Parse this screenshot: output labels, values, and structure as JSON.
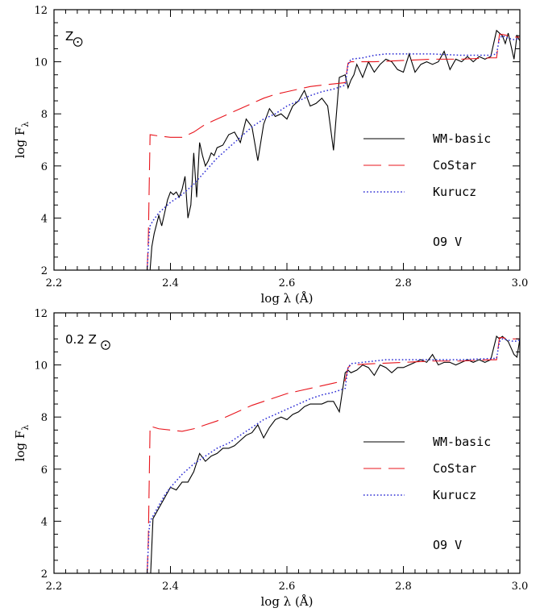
{
  "chart_data": [
    {
      "type": "line",
      "xlabel": "log  λ (Å)",
      "ylabel": "log F",
      "ylabel_sub": "λ",
      "xlim": [
        2.2,
        3.0
      ],
      "ylim": [
        2,
        12
      ],
      "xticks": [
        "2.2",
        "2.4",
        "2.6",
        "2.8",
        "3.0"
      ],
      "yticks": [
        "2",
        "4",
        "6",
        "8",
        "10",
        "12"
      ],
      "grid": false,
      "legend_position": "right",
      "metallicity_prefix": "",
      "metallicity_label": "Z",
      "spectral_type": "O9 V",
      "series": [
        {
          "name": "WM-basic",
          "color": "#000000",
          "style": "solid",
          "x": [
            2.365,
            2.368,
            2.372,
            2.38,
            2.385,
            2.39,
            2.395,
            2.4,
            2.405,
            2.41,
            2.415,
            2.42,
            2.425,
            2.43,
            2.435,
            2.44,
            2.445,
            2.45,
            2.455,
            2.46,
            2.465,
            2.47,
            2.475,
            2.48,
            2.49,
            2.5,
            2.51,
            2.52,
            2.53,
            2.54,
            2.55,
            2.56,
            2.57,
            2.58,
            2.59,
            2.6,
            2.61,
            2.62,
            2.63,
            2.64,
            2.65,
            2.66,
            2.67,
            2.68,
            2.69,
            2.7,
            2.705,
            2.71,
            2.715,
            2.72,
            2.73,
            2.74,
            2.75,
            2.76,
            2.77,
            2.78,
            2.79,
            2.8,
            2.81,
            2.82,
            2.83,
            2.84,
            2.85,
            2.86,
            2.87,
            2.88,
            2.89,
            2.9,
            2.91,
            2.92,
            2.93,
            2.94,
            2.95,
            2.96,
            2.965,
            2.97,
            2.975,
            2.98,
            2.985,
            2.99,
            2.995,
            3.0
          ],
          "values": [
            2.0,
            2.9,
            3.4,
            4.1,
            3.7,
            4.2,
            4.7,
            5.0,
            4.9,
            5.0,
            4.8,
            5.1,
            5.6,
            4.0,
            4.5,
            6.5,
            4.8,
            6.9,
            6.4,
            6.0,
            6.2,
            6.5,
            6.4,
            6.7,
            6.8,
            7.2,
            7.3,
            6.9,
            7.8,
            7.5,
            6.2,
            7.6,
            8.2,
            7.9,
            8.0,
            7.8,
            8.3,
            8.5,
            8.9,
            8.3,
            8.4,
            8.6,
            8.3,
            6.6,
            9.4,
            9.5,
            9.0,
            9.3,
            9.5,
            9.9,
            9.4,
            10.0,
            9.6,
            9.9,
            10.1,
            10.0,
            9.7,
            9.6,
            10.3,
            9.6,
            9.9,
            10.0,
            9.9,
            10.0,
            10.4,
            9.7,
            10.1,
            10.0,
            10.2,
            10.0,
            10.2,
            10.1,
            10.2,
            11.2,
            11.1,
            11.0,
            10.7,
            11.1,
            10.6,
            10.1,
            11.0,
            10.8
          ]
        },
        {
          "name": "CoStar",
          "color": "#e8141c",
          "style": "dashed",
          "x": [
            2.36,
            2.362,
            2.365,
            2.38,
            2.4,
            2.42,
            2.44,
            2.46,
            2.48,
            2.5,
            2.52,
            2.54,
            2.56,
            2.58,
            2.6,
            2.62,
            2.64,
            2.66,
            2.68,
            2.7,
            2.705,
            2.71,
            2.75,
            2.8,
            2.85,
            2.9,
            2.95,
            2.96,
            2.965,
            2.97,
            2.98,
            2.99,
            3.0
          ],
          "values": [
            2.0,
            3.2,
            7.2,
            7.15,
            7.1,
            7.1,
            7.3,
            7.6,
            7.8,
            8.0,
            8.2,
            8.4,
            8.6,
            8.75,
            8.85,
            8.95,
            9.05,
            9.1,
            9.15,
            9.2,
            9.95,
            10.0,
            10.0,
            10.05,
            10.1,
            10.1,
            10.15,
            10.15,
            11.05,
            11.05,
            11.0,
            10.95,
            10.95
          ]
        },
        {
          "name": "Kurucz",
          "color": "#2a2ad4",
          "style": "dotted",
          "x": [
            2.36,
            2.363,
            2.365,
            2.37,
            2.38,
            2.39,
            2.4,
            2.42,
            2.44,
            2.46,
            2.48,
            2.5,
            2.52,
            2.54,
            2.56,
            2.58,
            2.6,
            2.62,
            2.64,
            2.66,
            2.68,
            2.7,
            2.705,
            2.71,
            2.73,
            2.75,
            2.77,
            2.8,
            2.85,
            2.9,
            2.95,
            2.96,
            2.965,
            2.97,
            2.98,
            2.99,
            3.0
          ],
          "values": [
            2.0,
            3.3,
            3.7,
            3.9,
            4.2,
            4.4,
            4.6,
            4.9,
            5.3,
            5.8,
            6.3,
            6.7,
            7.1,
            7.5,
            7.8,
            8.0,
            8.3,
            8.5,
            8.7,
            8.85,
            8.95,
            9.1,
            9.9,
            10.1,
            10.15,
            10.25,
            10.3,
            10.3,
            10.3,
            10.25,
            10.25,
            10.3,
            10.9,
            11.0,
            10.9,
            10.85,
            10.9
          ]
        }
      ]
    },
    {
      "type": "line",
      "xlabel": "log  λ (Å)",
      "ylabel": "log F",
      "ylabel_sub": "λ",
      "xlim": [
        2.2,
        3.0
      ],
      "ylim": [
        2,
        12
      ],
      "xticks": [
        "2.2",
        "2.4",
        "2.6",
        "2.8",
        "3.0"
      ],
      "yticks": [
        "2",
        "4",
        "6",
        "8",
        "10",
        "12"
      ],
      "grid": false,
      "legend_position": "right",
      "metallicity_prefix": "0.2",
      "metallicity_label": "Z",
      "spectral_type": "O9 V",
      "series": [
        {
          "name": "WM-basic",
          "color": "#000000",
          "style": "solid",
          "x": [
            2.366,
            2.37,
            2.38,
            2.39,
            2.4,
            2.41,
            2.42,
            2.43,
            2.44,
            2.45,
            2.46,
            2.47,
            2.48,
            2.49,
            2.5,
            2.51,
            2.52,
            2.53,
            2.54,
            2.55,
            2.56,
            2.57,
            2.58,
            2.59,
            2.6,
            2.61,
            2.62,
            2.63,
            2.64,
            2.65,
            2.66,
            2.67,
            2.68,
            2.69,
            2.7,
            2.705,
            2.71,
            2.72,
            2.73,
            2.74,
            2.75,
            2.76,
            2.77,
            2.78,
            2.79,
            2.8,
            2.81,
            2.82,
            2.83,
            2.84,
            2.85,
            2.86,
            2.87,
            2.88,
            2.89,
            2.9,
            2.91,
            2.92,
            2.93,
            2.94,
            2.95,
            2.96,
            2.965,
            2.97,
            2.98,
            2.99,
            2.995,
            3.0
          ],
          "values": [
            2.0,
            4.1,
            4.5,
            4.9,
            5.3,
            5.2,
            5.5,
            5.5,
            5.9,
            6.6,
            6.3,
            6.5,
            6.6,
            6.8,
            6.8,
            6.9,
            7.1,
            7.3,
            7.4,
            7.7,
            7.2,
            7.6,
            7.9,
            8.0,
            7.9,
            8.1,
            8.2,
            8.4,
            8.5,
            8.5,
            8.5,
            8.6,
            8.6,
            8.2,
            9.7,
            9.8,
            9.7,
            9.8,
            10.0,
            9.9,
            9.6,
            10.0,
            9.9,
            9.7,
            9.9,
            9.9,
            10.0,
            10.1,
            10.2,
            10.1,
            10.4,
            10.0,
            10.1,
            10.1,
            10.0,
            10.1,
            10.2,
            10.1,
            10.2,
            10.1,
            10.2,
            11.1,
            11.0,
            11.1,
            10.9,
            10.4,
            10.3,
            11.0
          ]
        },
        {
          "name": "CoStar",
          "color": "#e8141c",
          "style": "dashed",
          "x": [
            2.36,
            2.362,
            2.365,
            2.38,
            2.4,
            2.42,
            2.44,
            2.46,
            2.48,
            2.5,
            2.52,
            2.54,
            2.56,
            2.58,
            2.6,
            2.62,
            2.64,
            2.66,
            2.68,
            2.7,
            2.705,
            2.71,
            2.75,
            2.8,
            2.85,
            2.9,
            2.95,
            2.96,
            2.965,
            2.97,
            2.98,
            2.99,
            3.0
          ],
          "values": [
            2.0,
            3.3,
            7.65,
            7.55,
            7.5,
            7.45,
            7.55,
            7.7,
            7.85,
            8.05,
            8.25,
            8.45,
            8.6,
            8.75,
            8.9,
            9.0,
            9.1,
            9.2,
            9.3,
            9.4,
            9.9,
            10.0,
            10.05,
            10.1,
            10.15,
            10.15,
            10.2,
            10.2,
            11.05,
            11.05,
            11.0,
            11.0,
            11.0
          ]
        },
        {
          "name": "Kurucz",
          "color": "#2a2ad4",
          "style": "dotted",
          "x": [
            2.36,
            2.363,
            2.365,
            2.37,
            2.38,
            2.39,
            2.4,
            2.42,
            2.44,
            2.46,
            2.48,
            2.5,
            2.52,
            2.54,
            2.56,
            2.58,
            2.6,
            2.62,
            2.64,
            2.66,
            2.68,
            2.7,
            2.705,
            2.71,
            2.73,
            2.75,
            2.77,
            2.8,
            2.85,
            2.9,
            2.95,
            2.96,
            2.965,
            2.97,
            2.98,
            2.99,
            3.0
          ],
          "values": [
            2.0,
            3.6,
            4.0,
            4.2,
            4.6,
            5.0,
            5.3,
            5.8,
            6.2,
            6.5,
            6.8,
            7.0,
            7.3,
            7.6,
            7.9,
            8.1,
            8.3,
            8.5,
            8.7,
            8.85,
            8.95,
            9.1,
            9.9,
            10.05,
            10.1,
            10.15,
            10.2,
            10.2,
            10.2,
            10.2,
            10.25,
            10.25,
            10.9,
            11.0,
            10.95,
            10.9,
            10.95
          ]
        }
      ]
    }
  ]
}
